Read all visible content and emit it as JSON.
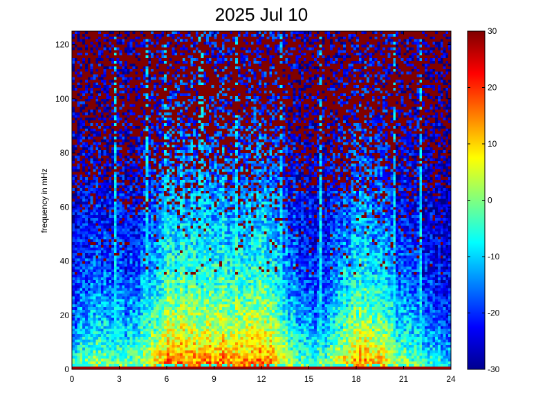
{
  "chart_data": {
    "type": "heatmap",
    "title": "2025 Jul 10",
    "xlabel": "",
    "ylabel": "frequency in mHz",
    "xlim": [
      0,
      24
    ],
    "ylim": [
      0,
      125
    ],
    "x_ticks": [
      0,
      3,
      6,
      9,
      12,
      15,
      18,
      21,
      24
    ],
    "y_ticks": [
      0,
      20,
      40,
      60,
      80,
      100,
      120
    ],
    "colorbar": {
      "colormap": "jet",
      "range": [
        -30,
        30
      ],
      "ticks": [
        -30,
        -20,
        -10,
        0,
        10,
        20,
        30
      ]
    },
    "x_resolution_hours": 0.166667,
    "y_resolution_mhz": 1.0,
    "description_of_field": "Power spectral density in dB; strong (yellow/red, ~5-15 dB) at low frequency (0-20 mHz) especially around 6, 10-12 and 17-19 h; mid values (~-10 dB) up to ~40-60 mHz during 6-13 h; dark blue (~-25 dB) in the 30-90 mHz range; high frequency (>90 mHz) noisy with many saturated red (30 dB) pixels; bright vertical streaks (broadband) at about 2.7, 5.9, 8.1-8.3 and 15.7 h; dark red band at 0-1 mHz.",
    "vertical_streaks_hours": [
      2.7,
      4.8,
      5.9,
      8.1,
      8.3,
      10.4,
      13.3,
      15.7,
      20.4,
      22.1
    ],
    "grid": false,
    "legend": "none"
  }
}
